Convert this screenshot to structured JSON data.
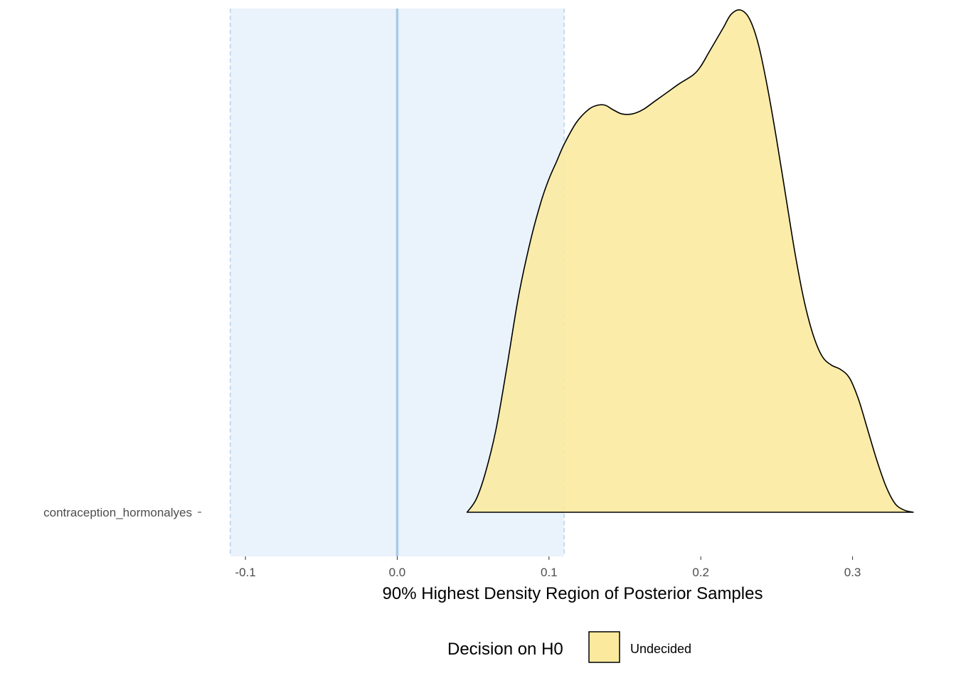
{
  "chart_data": {
    "type": "area",
    "xlabel": "90% Highest Density Region of Posterior Samples",
    "ylabel": "",
    "xlim": [
      -0.1094,
      0.3405
    ],
    "x_ticks": [
      -0.1,
      0.0,
      0.1,
      0.2,
      0.3
    ],
    "x_tick_labels": [
      "-0.1",
      "0.0",
      "0.1",
      "0.2",
      "0.3"
    ],
    "y_categories": [
      "contraception_hormonalyes"
    ],
    "rope": {
      "low": -0.11,
      "high": 0.11,
      "color": "#eaf3fc",
      "edge_color": "#b8d4ec"
    },
    "null_line": {
      "x": 0.0,
      "color": "#a8cbe6"
    },
    "grid": false,
    "legend": {
      "title": "Decision on H0",
      "position": "bottom",
      "entries": [
        {
          "label": "Undecided",
          "color": "#fbe99d"
        }
      ]
    },
    "series": [
      {
        "name": "Undecided",
        "category": "contraception_hormonalyes",
        "color": "#fbe99d",
        "x": [
          0.046,
          0.052,
          0.058,
          0.065,
          0.072,
          0.08,
          0.088,
          0.095,
          0.1,
          0.105,
          0.11,
          0.118,
          0.126,
          0.132,
          0.137,
          0.142,
          0.148,
          0.155,
          0.162,
          0.17,
          0.178,
          0.186,
          0.195,
          0.2,
          0.205,
          0.21,
          0.215,
          0.22,
          0.226,
          0.232,
          0.238,
          0.244,
          0.25,
          0.256,
          0.262,
          0.268,
          0.274,
          0.28,
          0.286,
          0.292,
          0.298,
          0.304,
          0.31,
          0.316,
          0.322,
          0.328,
          0.334,
          0.34
        ],
        "density": [
          0.0,
          0.03,
          0.09,
          0.19,
          0.33,
          0.5,
          0.63,
          0.72,
          0.77,
          0.81,
          0.85,
          0.9,
          0.93,
          0.94,
          0.94,
          0.93,
          0.92,
          0.92,
          0.93,
          0.95,
          0.97,
          0.99,
          1.01,
          1.03,
          1.06,
          1.09,
          1.12,
          1.15,
          1.16,
          1.14,
          1.08,
          0.98,
          0.86,
          0.73,
          0.6,
          0.49,
          0.41,
          0.36,
          0.34,
          0.33,
          0.31,
          0.26,
          0.19,
          0.12,
          0.06,
          0.02,
          0.005,
          0.0
        ]
      }
    ]
  }
}
